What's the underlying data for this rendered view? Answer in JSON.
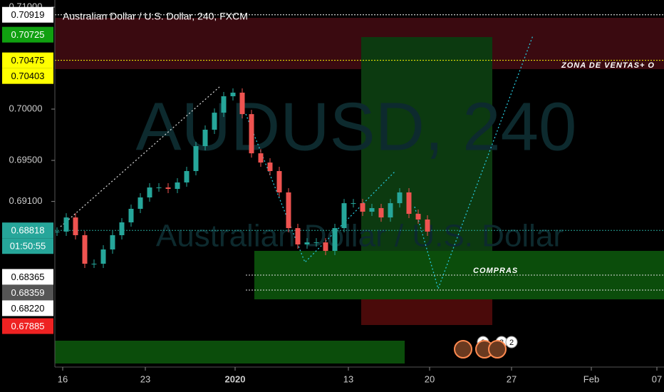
{
  "header": {
    "title": "Australian Dollar / U.S. Dollar, 240, FXCM"
  },
  "watermark": {
    "symbol": "AUDUSD, 240",
    "description": "Australian Dollar / U.S. Dollar"
  },
  "chart_data": {
    "type": "candlestick",
    "closes": [
      0.68806,
      0.68944,
      0.68771,
      0.68493,
      0.68493,
      0.68632,
      0.68771,
      0.68896,
      0.69028,
      0.69139,
      0.69236,
      0.69236,
      0.69222,
      0.69285,
      0.69396,
      0.69639,
      0.69799,
      0.69965,
      0.70125,
      0.7016,
      0.69951,
      0.69569,
      0.69479,
      0.69396,
      0.69188,
      0.6884,
      0.68681,
      0.68701,
      0.68701,
      0.68618,
      0.6884,
      0.69083,
      0.69083,
      0.69,
      0.69035,
      0.68944,
      0.69083,
      0.69188,
      0.68979,
      0.68924,
      0.68806
    ],
    "ylim": [
      0.67486,
      0.71063
    ],
    "yticks": [
      {
        "value": 0.71,
        "label": "0.71000"
      },
      {
        "value": 0.7,
        "label": "0.70000"
      },
      {
        "value": 0.695,
        "label": "0.69500"
      },
      {
        "value": 0.691,
        "label": "0.69100"
      }
    ],
    "price_labels": [
      {
        "value": 0.70919,
        "label": "0.70919",
        "bg": "#ffffff",
        "fg": "#000000"
      },
      {
        "value": 0.70725,
        "label": "0.70725",
        "bg": "#10a010",
        "fg": "#ffffff"
      },
      {
        "value": 0.70475,
        "label": "0.70475",
        "bg": "#ffff00",
        "fg": "#000000"
      },
      {
        "value": 0.70403,
        "label": "0.70403",
        "bg": "#ffff00",
        "fg": "#000000"
      },
      {
        "value": 0.68818,
        "label": "0.68818",
        "bg": "#26a69a",
        "fg": "#ffffff"
      },
      {
        "value": 0.68818,
        "label": "01:50:55",
        "bg": "#26a69a",
        "fg": "#ffffff"
      },
      {
        "value": 0.68365,
        "label": "0.68365",
        "bg": "#ffffff",
        "fg": "#000000"
      },
      {
        "value": 0.68359,
        "label": "0.68359",
        "bg": "#555555",
        "fg": "#ffffff"
      },
      {
        "value": 0.6822,
        "label": "0.68220",
        "bg": "#ffffff",
        "fg": "#000000"
      },
      {
        "value": 0.67885,
        "label": "0.67885",
        "bg": "#ee2222",
        "fg": "#ffffff"
      }
    ],
    "x_labels": [
      "16",
      "23",
      "2020",
      "13",
      "20",
      "27",
      "Feb",
      "07"
    ],
    "annotations": [
      "ZONA DE VENTAS+ O",
      "COMPRAS"
    ],
    "events": [
      "2",
      "3",
      "2"
    ],
    "up_color": "#26a69a",
    "down_color": "#ef5350"
  }
}
